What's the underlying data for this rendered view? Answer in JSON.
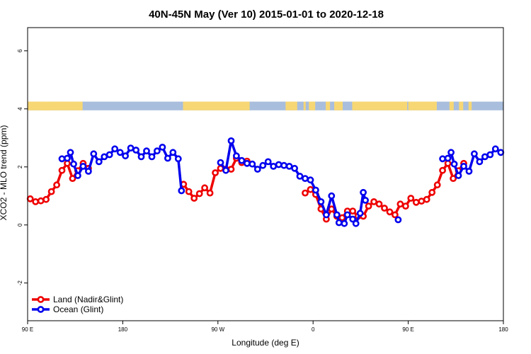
{
  "chart_data": {
    "type": "line",
    "title": "40N-45N May (Ver 10)   2015-01-01 to 2020-12-18",
    "xlabel": "Longitude (deg E)",
    "ylabel": "XCO2 - MLO trend (ppm)",
    "x_ticks": [
      {
        "value": 90,
        "label": "90 E"
      },
      {
        "value": 180,
        "label": "180"
      },
      {
        "value": 270,
        "label": "90 W"
      },
      {
        "value": 360,
        "label": "0"
      },
      {
        "value": 450,
        "label": "90 E"
      },
      {
        "value": 540,
        "label": "180"
      }
    ],
    "y_ticks": [
      {
        "value": -2,
        "label": "-2"
      },
      {
        "value": 0,
        "label": "0"
      },
      {
        "value": 2,
        "label": "2"
      },
      {
        "value": 4,
        "label": "4"
      },
      {
        "value": 6,
        "label": "6"
      }
    ],
    "xlim": [
      90,
      540
    ],
    "ylim": [
      -3.3,
      6.8
    ],
    "grid": false,
    "legend_position": "bottom-left",
    "surface_band": {
      "y_range": [
        3.95,
        4.25
      ],
      "land_color": "#f7d774",
      "ocean_color": "#a9bedd",
      "land_segments": [
        [
          90,
          140
        ],
        [
          104,
          111
        ],
        [
          138,
          142
        ],
        [
          237,
          300
        ],
        [
          334,
          345
        ],
        [
          351,
          353
        ],
        [
          356,
          362
        ],
        [
          372,
          376
        ],
        [
          380,
          388
        ],
        [
          397,
          449
        ],
        [
          450,
          477
        ],
        [
          489,
          493
        ],
        [
          498,
          502
        ],
        [
          507,
          510
        ]
      ]
    },
    "series": [
      {
        "name": "Land (Nadir&Glint)",
        "color": "#ee0000",
        "segments": [
          [
            [
              92.5,
              0.9
            ],
            [
              97.5,
              0.8
            ],
            [
              102.5,
              0.83
            ],
            [
              107.5,
              0.88
            ],
            [
              112.5,
              1.15
            ],
            [
              117.5,
              1.38
            ],
            [
              122.5,
              1.88
            ],
            [
              127.5,
              2.12
            ],
            [
              132.5,
              1.6
            ],
            [
              137.5,
              1.87
            ],
            [
              142.5,
              2.12
            ],
            [
              147.5,
              1.95
            ]
          ],
          [
            [
              237.5,
              1.4
            ],
            [
              242.5,
              1.15
            ],
            [
              247.5,
              0.92
            ],
            [
              252.5,
              1.08
            ],
            [
              257.5,
              1.28
            ],
            [
              262.5,
              1.1
            ],
            [
              267.5,
              1.8
            ],
            [
              272.5,
              1.95
            ],
            [
              277.5,
              1.92
            ],
            [
              282.5,
              1.92
            ],
            [
              287.5,
              2.3
            ],
            [
              292.5,
              2.15
            ],
            [
              297.5,
              2.2
            ]
          ],
          [
            [
              352.5,
              1.1
            ],
            [
              357.5,
              1.22
            ],
            [
              362.5,
              1.05
            ],
            [
              367.5,
              0.55
            ],
            [
              372.5,
              0.2
            ],
            [
              377.5,
              0.55
            ],
            [
              382.5,
              0.3
            ],
            [
              387.5,
              0.25
            ],
            [
              392.5,
              0.48
            ],
            [
              397.5,
              0.48
            ],
            [
              402.5,
              0.3
            ],
            [
              407.5,
              0.3
            ],
            [
              412.5,
              0.65
            ],
            [
              417.5,
              0.8
            ],
            [
              422.5,
              0.72
            ],
            [
              427.5,
              0.58
            ],
            [
              432.5,
              0.45
            ],
            [
              437.5,
              0.35
            ],
            [
              442.5,
              0.72
            ],
            [
              447.5,
              0.65
            ],
            [
              452.5,
              0.92
            ],
            [
              457.5,
              0.78
            ],
            [
              462.5,
              0.82
            ],
            [
              467.5,
              0.88
            ],
            [
              472.5,
              1.12
            ],
            [
              477.5,
              1.38
            ],
            [
              482.5,
              1.88
            ],
            [
              487.5,
              2.12
            ],
            [
              492.5,
              1.6
            ],
            [
              497.5,
              1.87
            ],
            [
              502.5,
              2.12
            ]
          ]
        ]
      },
      {
        "name": "Ocean (Glint)",
        "color": "#0000ee",
        "segments": [
          [
            [
              122.5,
              2.28
            ],
            [
              127.5,
              2.3
            ],
            [
              130.5,
              2.5
            ],
            [
              133.5,
              2.1
            ],
            [
              137.5,
              1.7
            ],
            [
              142.5,
              2.02
            ],
            [
              147.5,
              1.85
            ],
            [
              152.5,
              2.45
            ],
            [
              157.5,
              2.18
            ],
            [
              162.5,
              2.35
            ],
            [
              167.5,
              2.42
            ],
            [
              172.5,
              2.62
            ],
            [
              177.5,
              2.5
            ],
            [
              182.5,
              2.38
            ],
            [
              187.5,
              2.65
            ],
            [
              192.5,
              2.58
            ],
            [
              197.5,
              2.35
            ],
            [
              202.5,
              2.55
            ],
            [
              207.5,
              2.35
            ],
            [
              212.5,
              2.55
            ],
            [
              217.5,
              2.68
            ],
            [
              222.5,
              2.3
            ],
            [
              227.5,
              2.5
            ],
            [
              232.5,
              2.28
            ],
            [
              235.5,
              1.18
            ]
          ],
          [
            [
              272.5,
              2.15
            ],
            [
              277.5,
              1.88
            ],
            [
              282.5,
              2.9
            ],
            [
              287.5,
              2.38
            ],
            [
              292.5,
              2.22
            ],
            [
              297.5,
              2.12
            ],
            [
              302.5,
              2.1
            ],
            [
              307.5,
              1.92
            ],
            [
              312.5,
              2.05
            ],
            [
              317.5,
              2.18
            ],
            [
              322.5,
              2.02
            ],
            [
              327.5,
              2.08
            ],
            [
              332.5,
              2.05
            ],
            [
              337.5,
              2.02
            ],
            [
              342.5,
              1.95
            ],
            [
              347.5,
              1.68
            ],
            [
              352.5,
              1.6
            ],
            [
              357.5,
              1.55
            ],
            [
              362.5,
              1.2
            ],
            [
              367.5,
              0.8
            ],
            [
              372.5,
              0.35
            ],
            [
              377.5,
              1.0
            ],
            [
              382.5,
              0.35
            ],
            [
              384.5,
              0.08
            ],
            [
              389.5,
              0.05
            ],
            [
              392.5,
              0.35
            ],
            [
              397.5,
              0.2
            ],
            [
              400.5,
              0.05
            ],
            [
              404.5,
              0.4
            ],
            [
              407.5,
              1.12
            ],
            [
              409.5,
              0.85
            ]
          ],
          [
            [
              440.5,
              0.18
            ]
          ],
          [
            [
              482.5,
              2.28
            ],
            [
              487.5,
              2.3
            ],
            [
              490.5,
              2.5
            ],
            [
              493.5,
              2.1
            ],
            [
              497.5,
              1.7
            ],
            [
              502.5,
              2.02
            ],
            [
              507.5,
              1.85
            ],
            [
              512.5,
              2.45
            ],
            [
              517.5,
              2.18
            ],
            [
              522.5,
              2.35
            ],
            [
              527.5,
              2.42
            ],
            [
              532.5,
              2.62
            ],
            [
              537.5,
              2.5
            ]
          ]
        ]
      }
    ]
  }
}
